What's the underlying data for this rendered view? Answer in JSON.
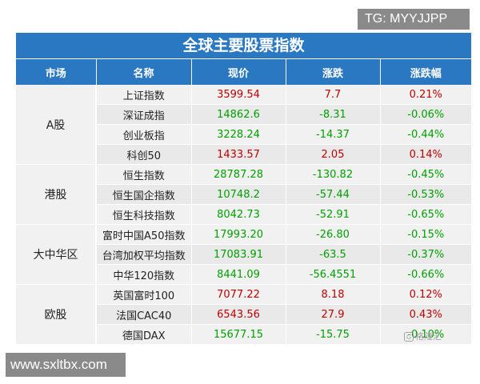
{
  "badge": {
    "text": "TG: MYYJJPP"
  },
  "title": "全球主要股票指数",
  "columns": [
    "市场",
    "名称",
    "现价",
    "涨跌",
    "涨跌幅"
  ],
  "markets": [
    {
      "name": "A股",
      "rows": [
        {
          "name": "上证指数",
          "price": "3599.54",
          "change": "7.7",
          "pct": "0.21%",
          "dir": "up"
        },
        {
          "name": "深证成指",
          "price": "14862.6",
          "change": "-8.31",
          "pct": "-0.06%",
          "dir": "down"
        },
        {
          "name": "创业板指",
          "price": "3228.24",
          "change": "-14.37",
          "pct": "-0.44%",
          "dir": "down"
        },
        {
          "name": "科创50",
          "price": "1433.57",
          "change": "2.05",
          "pct": "0.14%",
          "dir": "up"
        }
      ]
    },
    {
      "name": "港股",
      "rows": [
        {
          "name": "恒生指数",
          "price": "28787.28",
          "change": "-130.82",
          "pct": "-0.45%",
          "dir": "down"
        },
        {
          "name": "恒生国企指数",
          "price": "10748.2",
          "change": "-57.44",
          "pct": "-0.53%",
          "dir": "down"
        },
        {
          "name": "恒生科技指数",
          "price": "8042.73",
          "change": "-52.91",
          "pct": "-0.65%",
          "dir": "down"
        }
      ]
    },
    {
      "name": "大中华区",
      "rows": [
        {
          "name": "富时中国A50指数",
          "price": "17993.20",
          "change": "-26.80",
          "pct": "-0.15%",
          "dir": "down"
        },
        {
          "name": "台湾加权平均指数",
          "price": "17083.91",
          "change": "-63.5",
          "pct": "-0.37%",
          "dir": "down"
        },
        {
          "name": "中华120指数",
          "price": "8441.09",
          "change": "-56.4551",
          "pct": "-0.66%",
          "dir": "down"
        }
      ]
    },
    {
      "name": "欧股",
      "rows": [
        {
          "name": "英国富时100",
          "price": "7077.22",
          "change": "8.18",
          "pct": "0.12%",
          "dir": "up"
        },
        {
          "name": "法国CAC40",
          "price": "6543.56",
          "change": "27.9",
          "pct": "0.43%",
          "dir": "up"
        },
        {
          "name": "德国DAX",
          "price": "15677.15",
          "change": "-15.75",
          "pct": "-0.10%",
          "dir": "down"
        }
      ]
    }
  ],
  "watermark": {
    "text": "格隆汇"
  },
  "site_badge": {
    "text": "www.sxltbx.com"
  },
  "colors": {
    "header": "#2b78c2",
    "up": "#c00000",
    "down": "#00a000"
  }
}
